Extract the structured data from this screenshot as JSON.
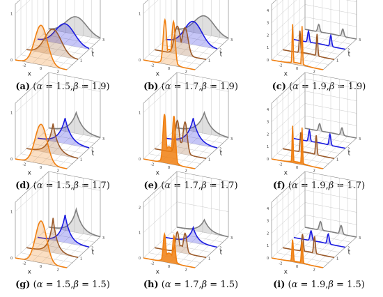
{
  "chart_data": [
    {
      "label": "(a)",
      "alpha": "1.5",
      "beta": "1.9",
      "type": "area",
      "xlabel": "x",
      "ylabel": "t",
      "x_ticks": [
        "-2",
        "0",
        "2"
      ],
      "t_ticks": [
        "1",
        "2",
        "3"
      ],
      "z_ticks": [
        "0",
        "1"
      ],
      "zmax": 1.2,
      "series": [
        {
          "t": 0,
          "color": "#f07f10",
          "shape": "gauss",
          "amp": 0.85,
          "center": 0,
          "width": 0.75
        },
        {
          "t": 1,
          "color": "#9b5a2a",
          "shape": "gauss",
          "amp": 0.55,
          "center": 0.1,
          "width": 0.95
        },
        {
          "t": 2,
          "color": "#1a1ae0",
          "shape": "gauss",
          "amp": 0.45,
          "center": 0.2,
          "width": 1.1
        },
        {
          "t": 3,
          "color": "#808080",
          "shape": "gauss",
          "amp": 0.38,
          "center": 0.2,
          "width": 1.2
        }
      ]
    },
    {
      "label": "(b)",
      "alpha": "1.7",
      "beta": "1.9",
      "type": "area",
      "xlabel": "x",
      "ylabel": "t",
      "x_ticks": [
        "-2",
        "0",
        "2"
      ],
      "t_ticks": [
        "1",
        "2",
        "3"
      ],
      "z_ticks": [
        "0",
        "1"
      ],
      "zmax": 1.2,
      "series": [
        {
          "t": 0,
          "color": "#f07f10",
          "shape": "double",
          "amp": 0.95,
          "center": 0,
          "sep": 0.5,
          "width": 0.2
        },
        {
          "t": 1,
          "color": "#9b5a2a",
          "shape": "double",
          "amp": 0.6,
          "center": 0.1,
          "sep": 0.45,
          "width": 0.35
        },
        {
          "t": 2,
          "color": "#1a1ae0",
          "shape": "gauss",
          "amp": 0.5,
          "center": 0.2,
          "width": 1.0
        },
        {
          "t": 3,
          "color": "#808080",
          "shape": "gauss",
          "amp": 0.4,
          "center": 0.2,
          "width": 1.15
        }
      ]
    },
    {
      "label": "(c)",
      "alpha": "1.9",
      "beta": "1.9",
      "type": "area",
      "xlabel": "x",
      "ylabel": "t",
      "x_ticks": [
        "-2",
        "0",
        "2"
      ],
      "t_ticks": [
        "1",
        "2",
        "3"
      ],
      "z_ticks": [
        "0",
        "1",
        "2",
        "3",
        "4"
      ],
      "zmax": 4.5,
      "series": [
        {
          "t": 0,
          "color": "#f07f10",
          "shape": "spike",
          "amp": 3.2,
          "center": 0,
          "sep": 0.55,
          "width": 0.06
        },
        {
          "t": 1,
          "color": "#9b5a2a",
          "shape": "spike",
          "amp": 1.8,
          "center": 0,
          "sep": 1.0,
          "width": 0.08
        },
        {
          "t": 2,
          "color": "#1a1ae0",
          "shape": "spike",
          "amp": 0.9,
          "center": 0,
          "sep": 1.3,
          "width": 0.1
        },
        {
          "t": 3,
          "color": "#808080",
          "shape": "spike",
          "amp": 0.6,
          "center": 0,
          "sep": 1.4,
          "width": 0.12
        }
      ]
    },
    {
      "label": "(d)",
      "alpha": "1.5",
      "beta": "1.7",
      "type": "area",
      "xlabel": "x",
      "ylabel": "t",
      "x_ticks": [
        "-2",
        "0",
        "2"
      ],
      "t_ticks": [
        "1",
        "2",
        "3"
      ],
      "z_ticks": [
        "0",
        "1"
      ],
      "zmax": 1.2,
      "series": [
        {
          "t": 0,
          "color": "#f07f10",
          "shape": "gauss",
          "amp": 0.85,
          "center": 0,
          "width": 0.7
        },
        {
          "t": 1,
          "color": "#9b5a2a",
          "shape": "peak",
          "amp": 0.65,
          "center": 0.1,
          "width": 0.75
        },
        {
          "t": 2,
          "color": "#1a1ae0",
          "shape": "peak",
          "amp": 0.55,
          "center": 0.2,
          "width": 0.9
        },
        {
          "t": 3,
          "color": "#808080",
          "shape": "peak",
          "amp": 0.45,
          "center": 0.2,
          "width": 1.0
        }
      ]
    },
    {
      "label": "(e)",
      "alpha": "1.7",
      "beta": "1.7",
      "type": "area",
      "xlabel": "x",
      "ylabel": "t",
      "x_ticks": [
        "-2",
        "0",
        "2"
      ],
      "t_ticks": [
        "1",
        "2",
        "3"
      ],
      "z_ticks": [
        "0",
        "1"
      ],
      "zmax": 1.2,
      "series": [
        {
          "t": 0,
          "color": "#f07f10",
          "shape": "double",
          "amp": 1.05,
          "center": 0,
          "sep": 0.55,
          "width": 0.18,
          "solid": true
        },
        {
          "t": 1,
          "color": "#9b5a2a",
          "shape": "double",
          "amp": 0.7,
          "center": 0.1,
          "sep": 0.45,
          "width": 0.25
        },
        {
          "t": 2,
          "color": "#1a1ae0",
          "shape": "peak",
          "amp": 0.55,
          "center": 0.2,
          "width": 0.85
        },
        {
          "t": 3,
          "color": "#808080",
          "shape": "peak",
          "amp": 0.45,
          "center": 0.2,
          "width": 1.0
        }
      ]
    },
    {
      "label": "(f)",
      "alpha": "1.9",
      "beta": "1.7",
      "type": "area",
      "xlabel": "x",
      "ylabel": "t",
      "x_ticks": [
        "-2",
        "0",
        "2"
      ],
      "t_ticks": [
        "1",
        "2",
        "3"
      ],
      "z_ticks": [
        "0",
        "1",
        "2",
        "3",
        "4"
      ],
      "zmax": 4.5,
      "series": [
        {
          "t": 0,
          "color": "#f07f10",
          "shape": "spike",
          "amp": 3.0,
          "center": 0,
          "sep": 0.55,
          "width": 0.06,
          "solid": true
        },
        {
          "t": 1,
          "color": "#9b5a2a",
          "shape": "spike",
          "amp": 1.6,
          "center": 0,
          "sep": 0.9,
          "width": 0.08
        },
        {
          "t": 2,
          "color": "#1a1ae0",
          "shape": "spike",
          "amp": 0.9,
          "center": 0,
          "sep": 1.2,
          "width": 0.1
        },
        {
          "t": 3,
          "color": "#808080",
          "shape": "spike",
          "amp": 0.6,
          "center": 0,
          "sep": 1.3,
          "width": 0.12
        }
      ]
    },
    {
      "label": "(g)",
      "alpha": "1.5",
      "beta": "1.5",
      "type": "area",
      "xlabel": "x",
      "ylabel": "t",
      "x_ticks": [
        "-2",
        "0",
        "2"
      ],
      "t_ticks": [
        "1",
        "2",
        "3"
      ],
      "z_ticks": [
        "0",
        "1"
      ],
      "zmax": 1.2,
      "series": [
        {
          "t": 0,
          "color": "#f07f10",
          "shape": "gauss",
          "amp": 0.9,
          "center": 0,
          "width": 0.65
        },
        {
          "t": 1,
          "color": "#9b5a2a",
          "shape": "peak",
          "amp": 0.75,
          "center": 0.1,
          "width": 0.6
        },
        {
          "t": 2,
          "color": "#1a1ae0",
          "shape": "peak",
          "amp": 0.6,
          "center": 0.2,
          "width": 0.75
        },
        {
          "t": 3,
          "color": "#808080",
          "shape": "peak",
          "amp": 0.5,
          "center": 0.2,
          "width": 0.85
        }
      ]
    },
    {
      "label": "(h)",
      "alpha": "1.7",
      "beta": "1.5",
      "type": "area",
      "xlabel": "x",
      "ylabel": "t",
      "x_ticks": [
        "-2",
        "0",
        "2"
      ],
      "t_ticks": [
        "1",
        "2",
        "3"
      ],
      "z_ticks": [
        "0",
        "1",
        "2"
      ],
      "zmax": 2.2,
      "series": [
        {
          "t": 0,
          "color": "#f07f10",
          "shape": "double",
          "amp": 1.1,
          "center": 0,
          "sep": 0.55,
          "width": 0.15,
          "solid": true
        },
        {
          "t": 1,
          "color": "#9b5a2a",
          "shape": "double",
          "amp": 0.8,
          "center": 0.1,
          "sep": 0.45,
          "width": 0.2
        },
        {
          "t": 2,
          "color": "#1a1ae0",
          "shape": "peak",
          "amp": 0.6,
          "center": 0.2,
          "width": 0.7
        },
        {
          "t": 3,
          "color": "#808080",
          "shape": "peak",
          "amp": 0.5,
          "center": 0.2,
          "width": 0.85
        }
      ]
    },
    {
      "label": "(i)",
      "alpha": "1.9",
      "beta": "1.5",
      "type": "area",
      "xlabel": "x",
      "ylabel": "t",
      "x_ticks": [
        "-2",
        "0",
        "2"
      ],
      "t_ticks": [
        "1",
        "2",
        "3"
      ],
      "z_ticks": [
        "0",
        "1",
        "2",
        "3",
        "4"
      ],
      "zmax": 4.5,
      "series": [
        {
          "t": 0,
          "color": "#f07f10",
          "shape": "spike",
          "amp": 1.8,
          "center": 0,
          "sep": 0.55,
          "width": 0.08,
          "solid": true
        },
        {
          "t": 1,
          "color": "#9b5a2a",
          "shape": "spike",
          "amp": 1.4,
          "center": 0,
          "sep": 0.7,
          "width": 0.1
        },
        {
          "t": 2,
          "color": "#1a1ae0",
          "shape": "spike",
          "amp": 0.8,
          "center": 0,
          "sep": 1.0,
          "width": 0.12
        },
        {
          "t": 3,
          "color": "#808080",
          "shape": "spike",
          "amp": 0.7,
          "center": 0,
          "sep": 1.2,
          "width": 0.14
        }
      ]
    }
  ]
}
